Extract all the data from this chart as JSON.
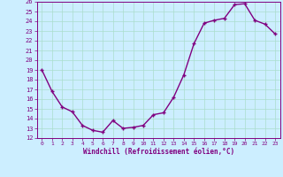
{
  "xlabel": "Windchill (Refroidissement éolien,°C)",
  "x": [
    0,
    1,
    2,
    3,
    4,
    5,
    6,
    7,
    8,
    9,
    10,
    11,
    12,
    13,
    14,
    15,
    16,
    17,
    18,
    19,
    20,
    21,
    22,
    23
  ],
  "y": [
    19,
    16.8,
    15.2,
    14.7,
    13.3,
    12.8,
    12.6,
    13.8,
    13.0,
    13.1,
    13.3,
    14.4,
    14.6,
    16.2,
    18.5,
    21.7,
    23.8,
    24.1,
    24.3,
    25.7,
    25.8,
    24.1,
    23.7,
    22.7
  ],
  "ylim": [
    12,
    26
  ],
  "xlim": [
    -0.5,
    23.5
  ],
  "yticks": [
    12,
    13,
    14,
    15,
    16,
    17,
    18,
    19,
    20,
    21,
    22,
    23,
    24,
    25,
    26
  ],
  "xticks": [
    0,
    1,
    2,
    3,
    4,
    5,
    6,
    7,
    8,
    9,
    10,
    11,
    12,
    13,
    14,
    15,
    16,
    17,
    18,
    19,
    20,
    21,
    22,
    23
  ],
  "line_color": "#800080",
  "marker": "+",
  "marker_size": 3.5,
  "bg_color": "#cceeff",
  "grid_color": "#aaddcc",
  "line_width": 1.0
}
